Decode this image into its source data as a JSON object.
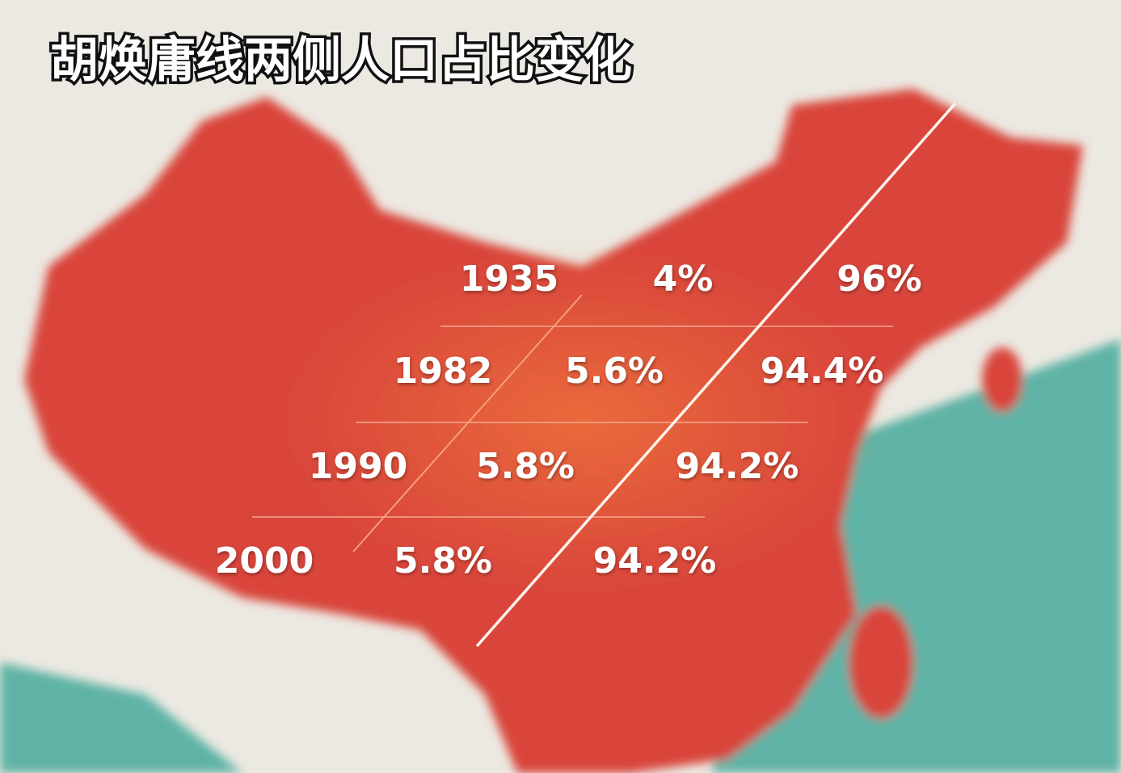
{
  "header": {
    "title": "胡焕庸线两侧人口占比变化"
  },
  "table": {
    "rows": [
      [
        "1935",
        "4%",
        "96%"
      ],
      [
        "1982",
        "5.6%",
        "94.4%"
      ],
      [
        "1990",
        "5.8%",
        "94.2%"
      ],
      [
        "2000",
        "5.8%",
        "94.2%"
      ]
    ]
  }
}
